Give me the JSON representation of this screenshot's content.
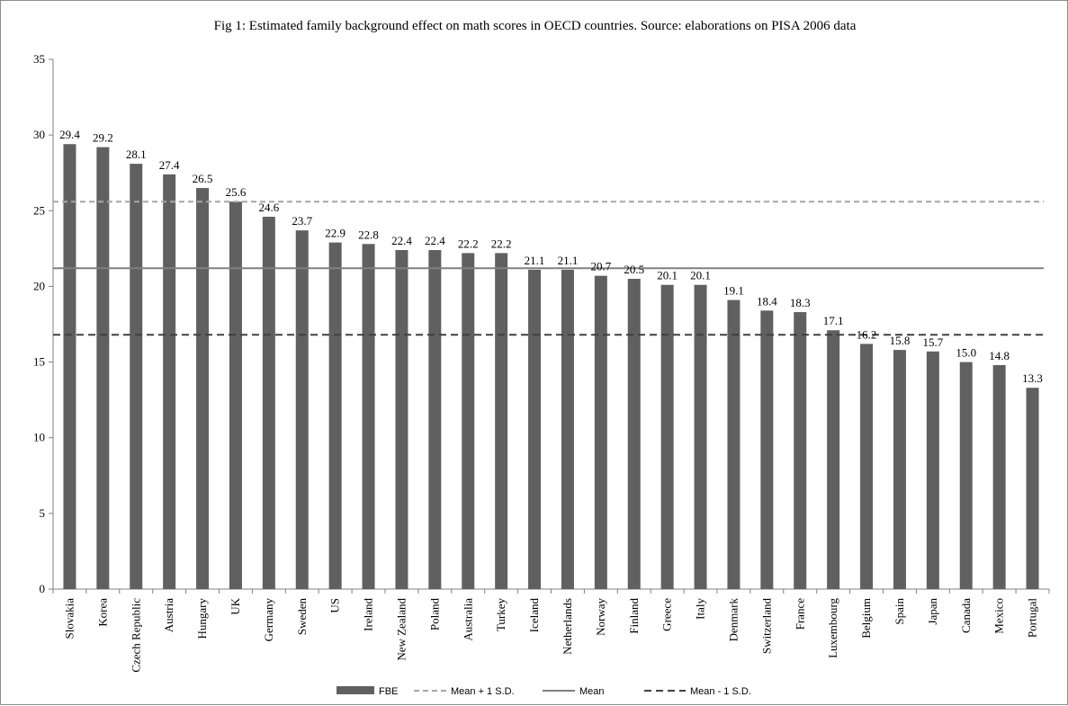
{
  "chart_data": {
    "type": "bar",
    "title": "Fig 1: Estimated family background effect on math scores in OECD countries. Source: elaborations on PISA 2006 data",
    "xlabel": "",
    "ylabel": "",
    "ylim": [
      0,
      35
    ],
    "yticks": [
      0,
      5,
      10,
      15,
      20,
      25,
      30,
      35
    ],
    "grid": false,
    "legend_position": "bottom",
    "categories": [
      "Slovakia",
      "Korea",
      "Czech Republic",
      "Austria",
      "Hungary",
      "UK",
      "Germany",
      "Sweden",
      "US",
      "Ireland",
      "New Zealand",
      "Poland",
      "Australia",
      "Turkey",
      "Iceland",
      "Netherlands",
      "Norway",
      "Finland",
      "Greece",
      "Italy",
      "Denmark",
      "Switzerland",
      "France",
      "Luxembourg",
      "Belgium",
      "Spain",
      "Japan",
      "Canada",
      "Mexico",
      "Portugal"
    ],
    "series": [
      {
        "name": "FBE",
        "values": [
          29.4,
          29.2,
          28.1,
          27.4,
          26.5,
          25.6,
          24.6,
          23.7,
          22.9,
          22.8,
          22.4,
          22.4,
          22.2,
          22.2,
          21.1,
          21.1,
          20.7,
          20.5,
          20.1,
          20.1,
          19.1,
          18.4,
          18.3,
          17.1,
          16.2,
          15.8,
          15.7,
          15.0,
          14.8,
          13.3
        ],
        "labels": [
          "29.4",
          "29.2",
          "28.1",
          "27.4",
          "26.5",
          "25.6",
          "24.6",
          "23.7",
          "22.9",
          "22.8",
          "22.4",
          "22.4",
          "22.2",
          "22.2",
          "21.1",
          "21.1",
          "20.7",
          "20.5",
          "20.1",
          "20.1",
          "19.1",
          "18.4",
          "18.3",
          "17.1",
          "16.2",
          "15.8",
          "15.7",
          "15.0",
          "14.8",
          "13.3"
        ]
      }
    ],
    "reference_lines": [
      {
        "name": "Mean + 1 S.D.",
        "value": 25.6,
        "style": "dashed-light"
      },
      {
        "name": "Mean",
        "value": 21.2,
        "style": "solid"
      },
      {
        "name": "Mean - 1 S.D.",
        "value": 16.8,
        "style": "dashed-dark"
      }
    ],
    "colors": {
      "bar": "#606060",
      "mean_plus": "#a6a6a6",
      "mean": "#808080",
      "mean_minus": "#404040",
      "axis": "#808080"
    }
  }
}
